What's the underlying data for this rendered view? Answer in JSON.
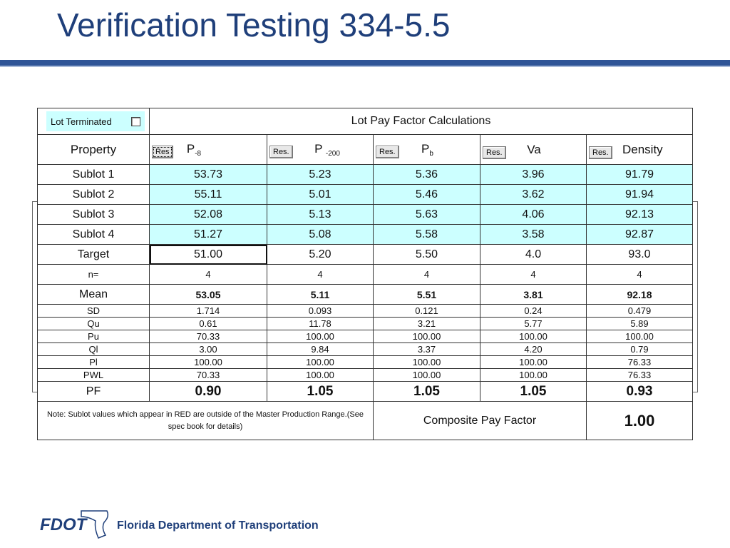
{
  "slide": {
    "title": "Verification Testing 334-5.5",
    "footer_org": "Florida Department of Transportation",
    "logo_text": "FDOT"
  },
  "table": {
    "lot_terminated_label": "Lot Terminated",
    "header_title": "Lot Pay Factor Calculations",
    "property_label": "Property",
    "res_labels": [
      "Res",
      "Res.",
      "Res.",
      "Res.",
      "Res."
    ],
    "columns": [
      {
        "name": "P",
        "sub": "-8"
      },
      {
        "name": "P",
        "sub": "-200"
      },
      {
        "name": "P",
        "sub": "b"
      },
      {
        "name": "Va",
        "sub": ""
      },
      {
        "name": "Density",
        "sub": ""
      }
    ],
    "rows": [
      {
        "label": "Sublot 1",
        "values": [
          "53.73",
          "5.23",
          "5.36",
          "3.96",
          "91.79"
        ]
      },
      {
        "label": "Sublot 2",
        "values": [
          "55.11",
          "5.01",
          "5.46",
          "3.62",
          "91.94"
        ]
      },
      {
        "label": "Sublot 3",
        "values": [
          "52.08",
          "5.13",
          "5.63",
          "4.06",
          "92.13"
        ]
      },
      {
        "label": "Sublot 4",
        "values": [
          "51.27",
          "5.08",
          "5.58",
          "3.58",
          "92.87"
        ]
      },
      {
        "label": "Target",
        "values": [
          "51.00",
          "5.20",
          "5.50",
          "4.0",
          "93.0"
        ]
      },
      {
        "label": "n=",
        "values": [
          "4",
          "4",
          "4",
          "4",
          "4"
        ]
      },
      {
        "label": "Mean",
        "values": [
          "53.05",
          "5.11",
          "5.51",
          "3.81",
          "92.18"
        ]
      },
      {
        "label": "SD",
        "values": [
          "1.714",
          "0.093",
          "0.121",
          "0.24",
          "0.479"
        ]
      },
      {
        "label": "Qu",
        "values": [
          "0.61",
          "11.78",
          "3.21",
          "5.77",
          "5.89"
        ]
      },
      {
        "label": "Pu",
        "values": [
          "70.33",
          "100.00",
          "100.00",
          "100.00",
          "100.00"
        ]
      },
      {
        "label": "Ql",
        "values": [
          "3.00",
          "9.84",
          "3.37",
          "4.20",
          "0.79"
        ]
      },
      {
        "label": "Pl",
        "values": [
          "100.00",
          "100.00",
          "100.00",
          "100.00",
          "76.33"
        ]
      },
      {
        "label": "PWL",
        "values": [
          "70.33",
          "100.00",
          "100.00",
          "100.00",
          "76.33"
        ]
      },
      {
        "label": "PF",
        "values": [
          "0.90",
          "1.05",
          "1.05",
          "1.05",
          "0.93"
        ]
      }
    ],
    "note": "Note: Sublot values which appear in RED are outside of the Master Production Range.(See spec book for details)",
    "composite_label": "Composite Pay Factor",
    "composite_value": "1.00"
  }
}
